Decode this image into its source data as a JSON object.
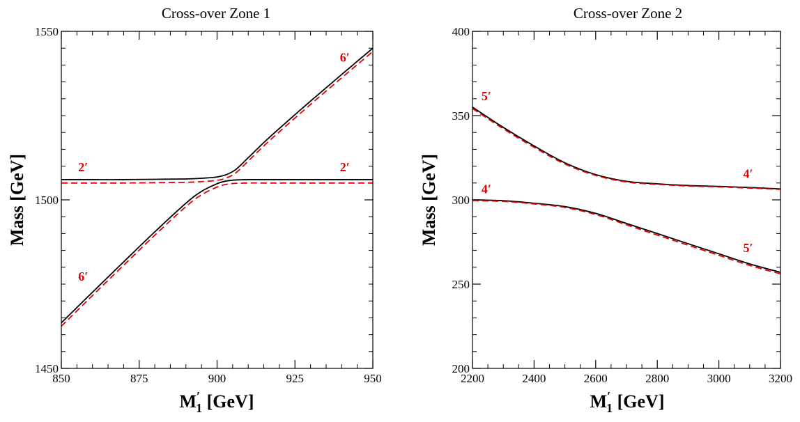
{
  "chart_data": [
    {
      "type": "line",
      "title": "Cross-over Zone 1",
      "xlabel_main": "M",
      "xlabel_sup": "′",
      "xlabel_sub": "1",
      "xlabel_unit": " [GeV]",
      "ylabel": "Mass [GeV]",
      "xlim": [
        850,
        950
      ],
      "ylim": [
        1450,
        1550
      ],
      "xticks": [
        850,
        875,
        900,
        925,
        950
      ],
      "yticks": [
        1450,
        1500,
        1550
      ],
      "xtick_labels": [
        "850",
        "875",
        "900",
        "925",
        "950"
      ],
      "ytick_labels": [
        "1450",
        "1500",
        "1550"
      ],
      "x_minor_step": 5,
      "y_minor_step": 5,
      "grid": false,
      "series": [
        {
          "style": "solid",
          "color": "#000000",
          "x": [
            850,
            860,
            870,
            880,
            890,
            895,
            900,
            903,
            906,
            910,
            915,
            920,
            930,
            940,
            950
          ],
          "y": [
            1463.5,
            1472.6,
            1481.6,
            1490.5,
            1499.0,
            1502.5,
            1504.8,
            1505.6,
            1505.9,
            1506.0,
            1506.0,
            1506.0,
            1506.0,
            1506.0,
            1506.0
          ]
        },
        {
          "style": "dashed",
          "color": "#e00000",
          "x": [
            850,
            860,
            870,
            880,
            890,
            895,
            900,
            903,
            906,
            910,
            915,
            920,
            930,
            940,
            950
          ],
          "y": [
            1462.5,
            1471.6,
            1480.6,
            1489.5,
            1498.0,
            1501.5,
            1503.8,
            1504.6,
            1504.9,
            1505.0,
            1505.0,
            1505.0,
            1505.0,
            1505.0,
            1505.0
          ]
        },
        {
          "style": "solid",
          "color": "#000000",
          "x": [
            850,
            860,
            870,
            880,
            890,
            895,
            900,
            903,
            906,
            910,
            915,
            920,
            930,
            940,
            950
          ],
          "y": [
            1506.0,
            1506.0,
            1506.0,
            1506.1,
            1506.2,
            1506.4,
            1506.8,
            1507.5,
            1509.0,
            1512.5,
            1517.0,
            1521.2,
            1529.3,
            1537.2,
            1545.0
          ]
        },
        {
          "style": "dashed",
          "color": "#e00000",
          "x": [
            850,
            860,
            870,
            880,
            890,
            895,
            900,
            903,
            906,
            910,
            915,
            920,
            930,
            940,
            950
          ],
          "y": [
            1505.0,
            1505.0,
            1505.0,
            1505.1,
            1505.2,
            1505.4,
            1505.8,
            1506.5,
            1508.0,
            1511.5,
            1516.0,
            1520.2,
            1528.3,
            1536.2,
            1544.0
          ]
        }
      ],
      "annotations": [
        {
          "text": "2′",
          "x": 857,
          "y": 1508.5
        },
        {
          "text": "6′",
          "x": 941,
          "y": 1541
        },
        {
          "text": "2′",
          "x": 941,
          "y": 1508.5
        },
        {
          "text": "6′",
          "x": 857,
          "y": 1476
        }
      ]
    },
    {
      "type": "line",
      "title": "Cross-over Zone 2",
      "xlabel_main": "M",
      "xlabel_sup": "′",
      "xlabel_sub": "1",
      "xlabel_unit": " [GeV]",
      "ylabel": "Mass [GeV]",
      "xlim": [
        2200,
        3200
      ],
      "ylim": [
        200,
        400
      ],
      "xticks": [
        2200,
        2400,
        2600,
        2800,
        3000,
        3200
      ],
      "yticks": [
        200,
        250,
        300,
        350,
        400
      ],
      "xtick_labels": [
        "2200",
        "2400",
        "2600",
        "2800",
        "3000",
        "3200"
      ],
      "ytick_labels": [
        "200",
        "250",
        "300",
        "350",
        "400"
      ],
      "x_minor_step": 50,
      "y_minor_step": 10,
      "grid": false,
      "series": [
        {
          "style": "solid",
          "color": "#000000",
          "x": [
            2200,
            2300,
            2400,
            2500,
            2600,
            2700,
            2800,
            2900,
            3000,
            3100,
            3200
          ],
          "y": [
            355,
            343,
            332,
            322,
            315,
            311,
            309.5,
            308.5,
            308,
            307.3,
            306.5
          ]
        },
        {
          "style": "dashed",
          "color": "#e00000",
          "x": [
            2200,
            2300,
            2400,
            2500,
            2600,
            2700,
            2800,
            2900,
            3000,
            3100,
            3200
          ],
          "y": [
            354.2,
            342.2,
            331.2,
            321.3,
            314.5,
            310.6,
            309.2,
            308.2,
            307.7,
            307.0,
            306.2
          ]
        },
        {
          "style": "solid",
          "color": "#000000",
          "x": [
            2200,
            2300,
            2400,
            2500,
            2600,
            2700,
            2800,
            2900,
            3000,
            3100,
            3200
          ],
          "y": [
            300,
            299.5,
            298,
            296,
            292,
            286,
            280,
            274,
            268,
            262,
            257
          ]
        },
        {
          "style": "dashed",
          "color": "#e00000",
          "x": [
            2200,
            2300,
            2400,
            2500,
            2600,
            2700,
            2800,
            2900,
            3000,
            3100,
            3200
          ],
          "y": [
            299.6,
            299.1,
            297.6,
            295.5,
            291.3,
            285.2,
            279.1,
            273.1,
            267.1,
            261.1,
            256.1
          ]
        }
      ],
      "annotations": [
        {
          "text": "5′",
          "x": 2245,
          "y": 359
        },
        {
          "text": "4′",
          "x": 3095,
          "y": 313
        },
        {
          "text": "4′",
          "x": 2245,
          "y": 304
        },
        {
          "text": "5′",
          "x": 3095,
          "y": 269
        }
      ]
    }
  ]
}
